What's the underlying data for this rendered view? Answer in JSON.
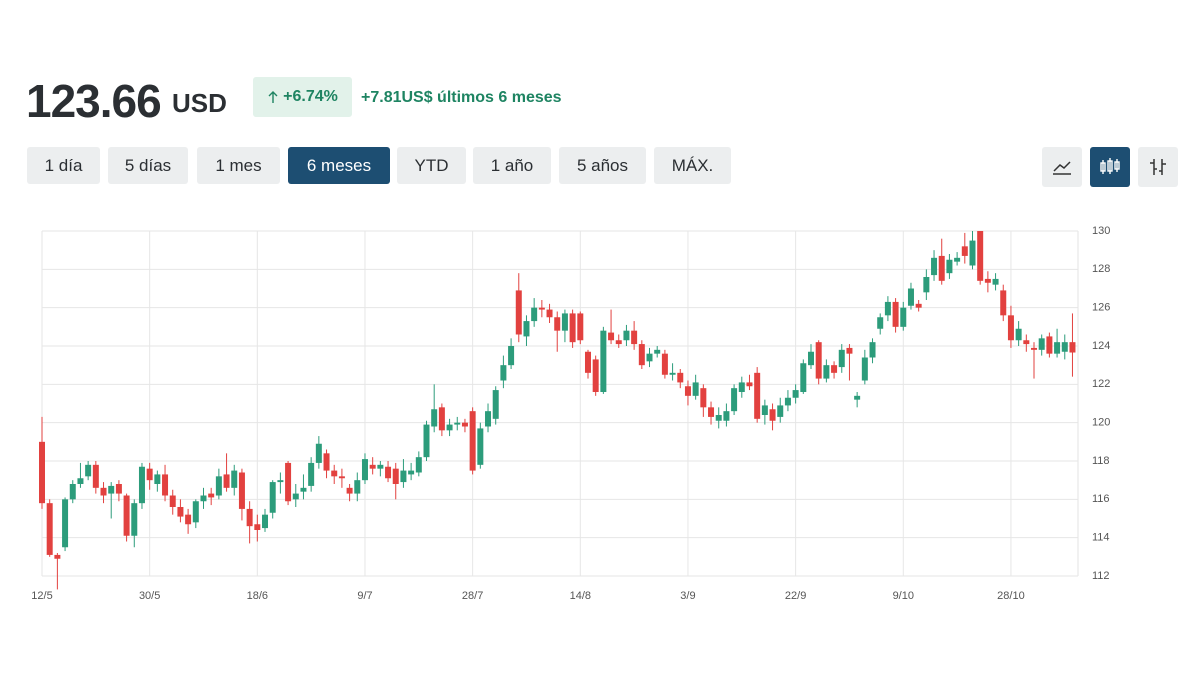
{
  "header": {
    "price": "123.66",
    "currency": "USD",
    "change_pct": "+6.74%",
    "change_text": "+7.81US$ últimos 6 meses"
  },
  "ranges": {
    "buttons": [
      "1 día",
      "5 días",
      "1 mes",
      "6 meses",
      "YTD",
      "1 año",
      "5 años",
      "MÁX."
    ],
    "selected": 3
  },
  "chart_data": {
    "type": "candlestick",
    "up_color": "#2c9c7b",
    "down_color": "#e2413f",
    "grid": true,
    "ylim": [
      112,
      130
    ],
    "yticks": [
      112,
      114,
      116,
      118,
      120,
      122,
      124,
      126,
      128,
      130
    ],
    "categories": [
      "12/5",
      null,
      null,
      null,
      null,
      null,
      null,
      null,
      null,
      null,
      null,
      null,
      null,
      null,
      "30/5",
      null,
      null,
      null,
      null,
      null,
      null,
      null,
      null,
      null,
      null,
      null,
      null,
      null,
      "18/6",
      null,
      null,
      null,
      null,
      null,
      null,
      null,
      null,
      null,
      null,
      null,
      null,
      null,
      "9/7",
      null,
      null,
      null,
      null,
      null,
      null,
      null,
      null,
      null,
      null,
      null,
      null,
      null,
      "28/7",
      null,
      null,
      null,
      null,
      null,
      null,
      null,
      null,
      null,
      null,
      null,
      null,
      null,
      "14/8",
      null,
      null,
      null,
      null,
      null,
      null,
      null,
      null,
      null,
      null,
      null,
      null,
      null,
      "3/9",
      null,
      null,
      null,
      null,
      null,
      null,
      null,
      null,
      null,
      null,
      null,
      null,
      null,
      "22/9",
      null,
      null,
      null,
      null,
      null,
      null,
      null,
      null,
      null,
      null,
      null,
      null,
      null,
      "9/10",
      null,
      null,
      null,
      null,
      null,
      null,
      null,
      null,
      null,
      null,
      null,
      null,
      null,
      "28/10",
      null,
      null,
      null,
      null,
      null,
      null,
      null,
      null
    ],
    "open": [
      119,
      115.8,
      113.1,
      113.5,
      116,
      116.8,
      117.2,
      117.8,
      116.6,
      116.3,
      116.8,
      116.2,
      114.1,
      115.8,
      117.6,
      116.8,
      117.3,
      116.2,
      115.6,
      115.2,
      114.8,
      115.9,
      116.3,
      116.2,
      117.3,
      116.6,
      117.4,
      115.5,
      114.7,
      114.5,
      115.3,
      116.9,
      117.9,
      116,
      116.4,
      116.7,
      117.9,
      118.4,
      117.5,
      117.2,
      116.6,
      116.3,
      117,
      117.8,
      117.6,
      117.7,
      117.6,
      116.9,
      117.3,
      117.4,
      118.2,
      119.8,
      120.8,
      119.6,
      119.9,
      120,
      120.6,
      117.8,
      119.8,
      120.2,
      122.2,
      123,
      126.9,
      124.5,
      125.3,
      126,
      125.9,
      125.5,
      124.8,
      125.7,
      125.7,
      123.7,
      123.3,
      121.6,
      124.7,
      124.3,
      124.3,
      124.8,
      124.1,
      123.2,
      123.6,
      123.6,
      122.5,
      122.6,
      121.9,
      121.4,
      121.8,
      120.8,
      120.1,
      120.1,
      120.6,
      121.6,
      122.1,
      122.6,
      120.4,
      120.7,
      120.3,
      120.9,
      121.3,
      121.6,
      123,
      124.2,
      122.3,
      123,
      122.9,
      123.9,
      121.2,
      122.2,
      123.4,
      124.9,
      125.6,
      126.3,
      125,
      126.1,
      126.2,
      126.8,
      127.7,
      128.7,
      127.8,
      128.4,
      129.2,
      128.2,
      130,
      127.5,
      127.2,
      126.9,
      125.6,
      124.3,
      124.3,
      123.9,
      123.8,
      124.5,
      123.6,
      123.7,
      124.2
    ],
    "high": [
      120.3,
      116,
      113.2,
      116.1,
      117,
      117.9,
      118,
      118,
      116.9,
      116.9,
      117,
      116.3,
      116,
      117.9,
      117.9,
      117.5,
      117.8,
      116.5,
      116,
      115.5,
      116,
      116.6,
      116.6,
      117.6,
      118.4,
      117.8,
      117.6,
      115.9,
      115.2,
      115.5,
      117,
      117.4,
      118,
      116.8,
      117.3,
      118.2,
      119.3,
      118.6,
      117.8,
      117.6,
      116.8,
      117.4,
      118.4,
      118.2,
      118,
      118,
      117.9,
      118.1,
      117.9,
      118.5,
      120.1,
      122,
      121,
      120.2,
      120.3,
      120.2,
      120.8,
      120,
      121,
      121.9,
      123.5,
      124.4,
      127.8,
      125.6,
      126.5,
      126.4,
      126.2,
      125.8,
      125.9,
      125.9,
      125.8,
      123.8,
      123.5,
      125,
      125.9,
      124.6,
      125.1,
      125.3,
      124.3,
      123.9,
      124,
      123.8,
      123.1,
      122.8,
      122.2,
      122.5,
      122,
      121.1,
      120.8,
      121,
      122,
      122.4,
      122.5,
      122.9,
      121.2,
      121,
      121.3,
      121.7,
      122,
      123.3,
      124.1,
      124.3,
      123.3,
      123.2,
      124.1,
      124.1,
      121.6,
      123.8,
      124.4,
      125.7,
      126.6,
      126.5,
      126.3,
      127.3,
      126.4,
      128,
      129,
      129.6,
      128.8,
      128.9,
      129.9,
      130,
      130,
      127.9,
      127.8,
      127.2,
      126.1,
      125.3,
      124.6,
      124.2,
      124.6,
      124.7,
      124.9,
      124.6,
      125.7
    ],
    "low": [
      115.5,
      113,
      111.3,
      113.3,
      115.8,
      116.6,
      117,
      116.3,
      115.8,
      115,
      115.9,
      113.8,
      113.5,
      115.5,
      116.5,
      116.4,
      115.9,
      115.2,
      114.8,
      114.2,
      114.5,
      115.5,
      115.7,
      116,
      116.4,
      116.2,
      114.9,
      113.7,
      113.8,
      114.3,
      115,
      116.3,
      115.7,
      115.6,
      116,
      116.4,
      117.6,
      117.1,
      116.8,
      116.6,
      115.9,
      115.9,
      116.8,
      117.3,
      117.2,
      116.9,
      116,
      116.6,
      117,
      117.2,
      118,
      119.5,
      119.3,
      119.3,
      119.6,
      119.5,
      117.3,
      117.6,
      119.5,
      119.9,
      121.8,
      122.8,
      124.2,
      124,
      125,
      125.5,
      125.2,
      123.7,
      124.2,
      123.9,
      124.1,
      122.3,
      121.4,
      121.5,
      124.1,
      123.9,
      124,
      123.8,
      122.8,
      122.9,
      123.4,
      122.3,
      122.2,
      121.8,
      120.9,
      121.2,
      120.3,
      119.9,
      119.7,
      119.8,
      120.4,
      121.3,
      121.7,
      120,
      119.9,
      119.6,
      120,
      120.6,
      121,
      121.5,
      122.8,
      122,
      122.1,
      122.3,
      122.6,
      122.2,
      120.8,
      122,
      123.1,
      124.6,
      125.3,
      124.7,
      124.8,
      125.9,
      125.8,
      126.4,
      127.4,
      127.2,
      127.5,
      128.2,
      128.3,
      128,
      127.2,
      126.8,
      126.9,
      125.3,
      123.9,
      124,
      123.7,
      122.3,
      123.5,
      123.4,
      123.4,
      123.3,
      122.4
    ],
    "close": [
      115.8,
      113.1,
      112.9,
      116,
      116.8,
      117.1,
      117.8,
      116.6,
      116.2,
      116.7,
      116.3,
      114.1,
      115.8,
      117.7,
      117,
      117.3,
      116.2,
      115.6,
      115.1,
      114.7,
      115.9,
      116.2,
      116.1,
      117.2,
      116.6,
      117.5,
      115.5,
      114.6,
      114.4,
      115.2,
      116.9,
      117,
      115.9,
      116.3,
      116.6,
      117.9,
      118.9,
      117.5,
      117.2,
      117.1,
      116.3,
      117,
      118.1,
      117.6,
      117.8,
      117.1,
      116.8,
      117.5,
      117.5,
      118.2,
      119.9,
      120.7,
      119.6,
      119.9,
      120,
      119.8,
      117.5,
      119.7,
      120.6,
      121.7,
      123,
      124,
      124.6,
      125.3,
      126,
      125.9,
      125.5,
      124.8,
      125.7,
      124.2,
      124.3,
      122.6,
      121.6,
      124.8,
      124.3,
      124.1,
      124.8,
      124.1,
      123,
      123.6,
      123.8,
      122.5,
      122.6,
      122.1,
      121.4,
      122.1,
      120.8,
      120.3,
      120.4,
      120.6,
      121.8,
      122.1,
      121.9,
      120.2,
      120.9,
      120.1,
      120.9,
      121.3,
      121.7,
      123.1,
      123.7,
      122.3,
      123,
      122.6,
      123.8,
      123.6,
      121.4,
      123.4,
      124.2,
      125.5,
      126.3,
      125,
      126,
      127,
      126,
      127.6,
      128.6,
      127.4,
      128.5,
      128.6,
      128.7,
      129.5,
      127.4,
      127.3,
      127.5,
      125.6,
      124.3,
      124.9,
      124.1,
      123.8,
      124.4,
      123.6,
      124.2,
      124.2,
      123.66
    ]
  }
}
